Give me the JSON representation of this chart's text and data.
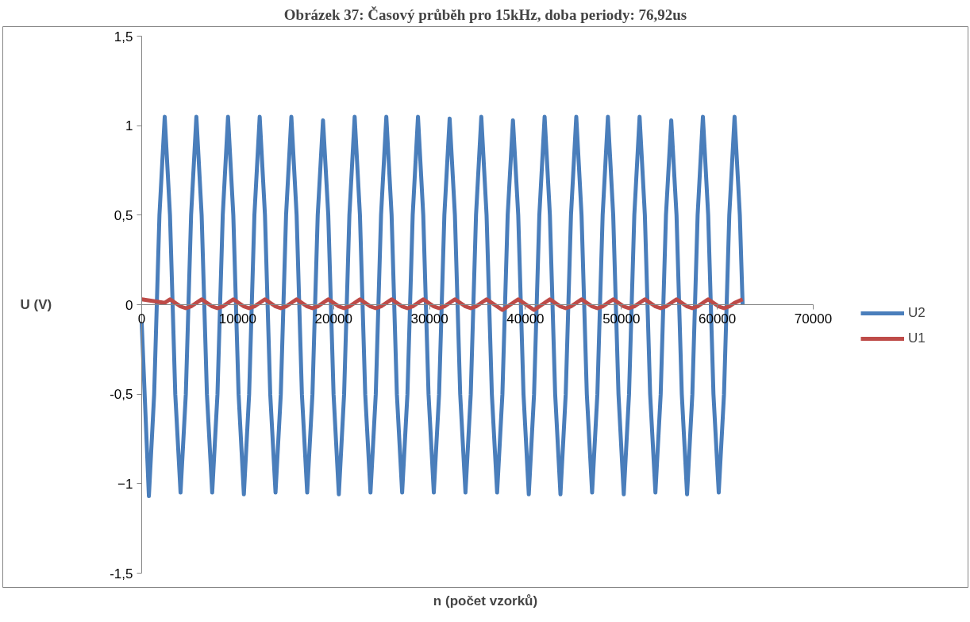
{
  "chart_data": {
    "type": "line",
    "title": "Obrázek 37: Časový průběh pro 15kHz, doba periody: 76,92us",
    "xlabel": "n (počet vzorků)",
    "ylabel": "U (V)",
    "xlim": [
      0,
      70000
    ],
    "xticks": [
      0,
      10000,
      20000,
      30000,
      40000,
      50000,
      60000,
      70000
    ],
    "ylim": [
      -1.5,
      1.5
    ],
    "yticks": [
      {
        "value": -1.5,
        "label": "-1,5"
      },
      -1,
      {
        "value": -0.5,
        "label": "-0,5"
      },
      0,
      {
        "value": 0.5,
        "label": "0,5"
      },
      1,
      {
        "value": 1.5,
        "label": "1,5"
      }
    ],
    "legend": "right",
    "series": [
      {
        "name": "U2",
        "color": "#4a7ebb",
        "x": [
          0,
          750,
          1300,
          1850,
          2400,
          2950,
          3500,
          4050,
          4600,
          5150,
          5700,
          6250,
          6800,
          7350,
          7900,
          8450,
          9000,
          9550,
          10100,
          10650,
          11200,
          11750,
          12300,
          12850,
          13400,
          13950,
          14500,
          15050,
          15600,
          16150,
          16700,
          17250,
          17800,
          18350,
          18900,
          19450,
          20000,
          20550,
          21100,
          21650,
          22200,
          22750,
          23300,
          23850,
          24400,
          24950,
          25500,
          26050,
          26600,
          27150,
          27700,
          28250,
          28800,
          29350,
          29900,
          30450,
          31000,
          31550,
          32100,
          32650,
          33200,
          33750,
          34300,
          34850,
          35400,
          35950,
          36500,
          37050,
          37600,
          38150,
          38700,
          39250,
          39800,
          40350,
          40900,
          41450,
          42000,
          42550,
          43100,
          43650,
          44200,
          44750,
          45300,
          45850,
          46400,
          46950,
          47500,
          48050,
          48600,
          49150,
          49700,
          50250,
          50800,
          51350,
          51900,
          52450,
          53000,
          53550,
          54100,
          54650,
          55200,
          55750,
          56300,
          56850,
          57400,
          57950,
          58500,
          59050,
          59600,
          60150,
          60700,
          61250,
          61800,
          62350,
          62640
        ],
        "values": [
          -0.1,
          -1.07,
          -0.5,
          0.5,
          1.05,
          0.5,
          -0.5,
          -1.05,
          -0.5,
          0.5,
          1.05,
          0.5,
          -0.5,
          -1.05,
          -0.5,
          0.5,
          1.05,
          0.5,
          -0.5,
          -1.06,
          -0.5,
          0.5,
          1.05,
          0.5,
          -0.5,
          -1.05,
          -0.5,
          0.5,
          1.05,
          0.5,
          -0.5,
          -1.05,
          -0.5,
          0.5,
          1.03,
          0.5,
          -0.5,
          -1.06,
          -0.5,
          0.5,
          1.05,
          0.5,
          -0.5,
          -1.05,
          -0.5,
          0.5,
          1.05,
          0.5,
          -0.5,
          -1.05,
          -0.5,
          0.5,
          1.05,
          0.5,
          -0.5,
          -1.05,
          -0.5,
          0.5,
          1.04,
          0.5,
          -0.5,
          -1.05,
          -0.5,
          0.5,
          1.05,
          0.5,
          -0.5,
          -1.05,
          -0.5,
          0.5,
          1.03,
          0.5,
          -0.5,
          -1.06,
          -0.5,
          0.5,
          1.05,
          0.5,
          -0.5,
          -1.06,
          -0.5,
          0.5,
          1.05,
          0.5,
          -0.5,
          -1.05,
          -0.5,
          0.5,
          1.05,
          0.5,
          -0.5,
          -1.06,
          -0.5,
          0.5,
          1.05,
          0.5,
          -0.5,
          -1.05,
          -0.5,
          0.5,
          1.03,
          0.5,
          -0.5,
          -1.06,
          -0.5,
          0.5,
          1.05,
          0.5,
          -0.5,
          -1.05,
          -0.5,
          0.5,
          1.05,
          0.5,
          0
        ]
      },
      {
        "name": "U1",
        "color": "#be4b48",
        "x": [
          0,
          2400,
          2950,
          3500,
          4050,
          4600,
          5150,
          5700,
          6250,
          6800,
          7350,
          7900,
          8450,
          9000,
          9550,
          10100,
          10650,
          11200,
          11750,
          12300,
          12850,
          13400,
          13950,
          14500,
          15050,
          15600,
          16150,
          16700,
          17250,
          17800,
          18350,
          18900,
          19450,
          20000,
          20550,
          21100,
          21650,
          22200,
          22750,
          23300,
          23850,
          24400,
          24950,
          25500,
          26050,
          26600,
          27150,
          27700,
          28250,
          28800,
          29350,
          29900,
          30450,
          31000,
          31550,
          32100,
          32650,
          33200,
          33750,
          34300,
          34850,
          35400,
          35950,
          36500,
          37050,
          37600,
          38150,
          38700,
          39250,
          39800,
          40350,
          40900,
          41450,
          42000,
          42550,
          43100,
          43650,
          44200,
          44750,
          45300,
          45850,
          46400,
          46950,
          47500,
          48050,
          48600,
          49150,
          49700,
          50250,
          50800,
          51350,
          51900,
          52450,
          53000,
          53550,
          54100,
          54650,
          55200,
          55750,
          56300,
          56850,
          57400,
          57950,
          58500,
          59050,
          59600,
          60150,
          60700,
          61250,
          61800,
          62640
        ],
        "values": [
          0.03,
          0.01,
          0.03,
          0.01,
          -0.01,
          -0.02,
          -0.01,
          0.01,
          0.03,
          0.01,
          -0.01,
          -0.02,
          -0.01,
          0.01,
          0.03,
          0.01,
          -0.01,
          -0.02,
          -0.01,
          0.01,
          0.03,
          0.01,
          -0.01,
          -0.02,
          -0.01,
          0.01,
          0.03,
          0.01,
          -0.01,
          -0.02,
          -0.01,
          0.01,
          0.03,
          0.01,
          -0.01,
          -0.02,
          -0.01,
          0.01,
          0.03,
          0.01,
          -0.01,
          -0.02,
          -0.01,
          0.01,
          0.03,
          0.01,
          -0.01,
          -0.02,
          -0.01,
          0.01,
          0.03,
          0.01,
          -0.01,
          -0.02,
          -0.01,
          0.01,
          0.03,
          0.01,
          -0.01,
          -0.02,
          -0.01,
          0.01,
          0.03,
          0.01,
          -0.01,
          -0.03,
          -0.01,
          0.01,
          0.03,
          0.01,
          -0.01,
          -0.03,
          -0.01,
          0.01,
          0.03,
          0.01,
          -0.01,
          -0.02,
          -0.01,
          0.01,
          0.03,
          0.01,
          -0.01,
          -0.02,
          -0.01,
          0.01,
          0.03,
          0.01,
          -0.01,
          -0.02,
          -0.01,
          0.01,
          0.03,
          0.01,
          -0.01,
          -0.02,
          -0.01,
          0.01,
          0.03,
          0.01,
          -0.01,
          -0.02,
          -0.01,
          0.01,
          0.03,
          0.01,
          -0.01,
          -0.02,
          -0.01,
          0.01,
          0.03
        ]
      }
    ]
  }
}
